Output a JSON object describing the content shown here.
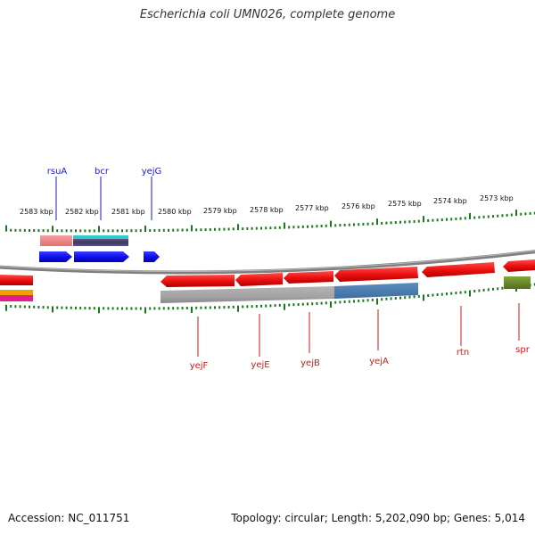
{
  "title": "Escherichia coli UMN026, complete genome",
  "footer": {
    "accession": "Accession: NC_011751",
    "summary": "Topology: circular; Length: 5,202,090 bp; Genes: 5,014"
  },
  "colors": {
    "tick": "#1a7a1a",
    "backbone": "#808080",
    "forward_label": "#1a1acc",
    "reverse_label": "#cc1a1a",
    "gene_red": "#ee1111",
    "gene_blue": "#1010ee",
    "gene_olive": "#6b8e23"
  },
  "kbp_labels": [
    "2583 kbp",
    "2582 kbp",
    "2581 kbp",
    "2580 kbp",
    "2579 kbp",
    "2578 kbp",
    "2577 kbp",
    "2576 kbp",
    "2575 kbp",
    "2574 kbp",
    "2573 kbp"
  ],
  "forward_genes": [
    "rsuA",
    "bcr",
    "yejG"
  ],
  "reverse_genes": [
    "yejF",
    "yejE",
    "yejB",
    "yejA",
    "rtn",
    "spr"
  ]
}
